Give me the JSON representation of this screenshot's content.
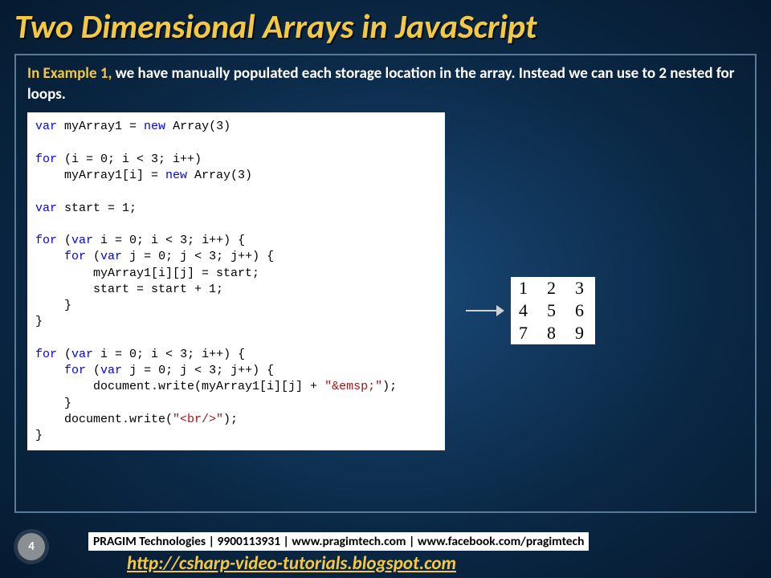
{
  "title": "Two Dimensional Arrays in JavaScript",
  "intro": {
    "highlight": "In Example 1, ",
    "rest": "we have manually populated each storage location in the array. Instead we can use to 2 nested for loops."
  },
  "code": {
    "tokens": [
      {
        "t": "var ",
        "c": "kw"
      },
      {
        "t": "myArray1 = "
      },
      {
        "t": "new ",
        "c": "kw"
      },
      {
        "t": "Array(3)\n\n"
      },
      {
        "t": "for ",
        "c": "kw"
      },
      {
        "t": "(i = 0; i < 3; i++)\n"
      },
      {
        "t": "    myArray1[i] = "
      },
      {
        "t": "new ",
        "c": "kw"
      },
      {
        "t": "Array(3)\n\n"
      },
      {
        "t": "var ",
        "c": "kw"
      },
      {
        "t": "start = 1;\n\n"
      },
      {
        "t": "for ",
        "c": "kw"
      },
      {
        "t": "("
      },
      {
        "t": "var ",
        "c": "kw"
      },
      {
        "t": "i = 0; i < 3; i++) {\n"
      },
      {
        "t": "    "
      },
      {
        "t": "for ",
        "c": "kw"
      },
      {
        "t": "("
      },
      {
        "t": "var ",
        "c": "kw"
      },
      {
        "t": "j = 0; j < 3; j++) {\n"
      },
      {
        "t": "        myArray1[i][j] = start;\n"
      },
      {
        "t": "        start = start + 1;\n"
      },
      {
        "t": "    }\n"
      },
      {
        "t": "}\n\n"
      },
      {
        "t": "for ",
        "c": "kw"
      },
      {
        "t": "("
      },
      {
        "t": "var ",
        "c": "kw"
      },
      {
        "t": "i = 0; i < 3; i++) {\n"
      },
      {
        "t": "    "
      },
      {
        "t": "for ",
        "c": "kw"
      },
      {
        "t": "("
      },
      {
        "t": "var ",
        "c": "kw"
      },
      {
        "t": "j = 0; j < 3; j++) {\n"
      },
      {
        "t": "        document.write(myArray1[i][j] + "
      },
      {
        "t": "\"&emsp;\"",
        "c": "str"
      },
      {
        "t": ");\n"
      },
      {
        "t": "    }\n"
      },
      {
        "t": "    document.write("
      },
      {
        "t": "\"<br/>\"",
        "c": "str"
      },
      {
        "t": ");\n"
      },
      {
        "t": "}"
      }
    ]
  },
  "output": {
    "rows": [
      [
        "1",
        "2",
        "3"
      ],
      [
        "4",
        "5",
        "6"
      ],
      [
        "7",
        "8",
        "9"
      ]
    ]
  },
  "footer": {
    "pageNumber": "4",
    "company": "PRAGIM Technologies | 9900113931 | www.pragimtech.com | www.facebook.com/pragimtech",
    "link": "http://csharp-video-tutorials.blogspot.com"
  },
  "colors": {
    "accent": "#f5c842",
    "border": "#5a7a9a",
    "keyword": "#0000ff",
    "string": "#a31515",
    "background_inner": "#0a2845",
    "background_outer": "#061a30"
  }
}
